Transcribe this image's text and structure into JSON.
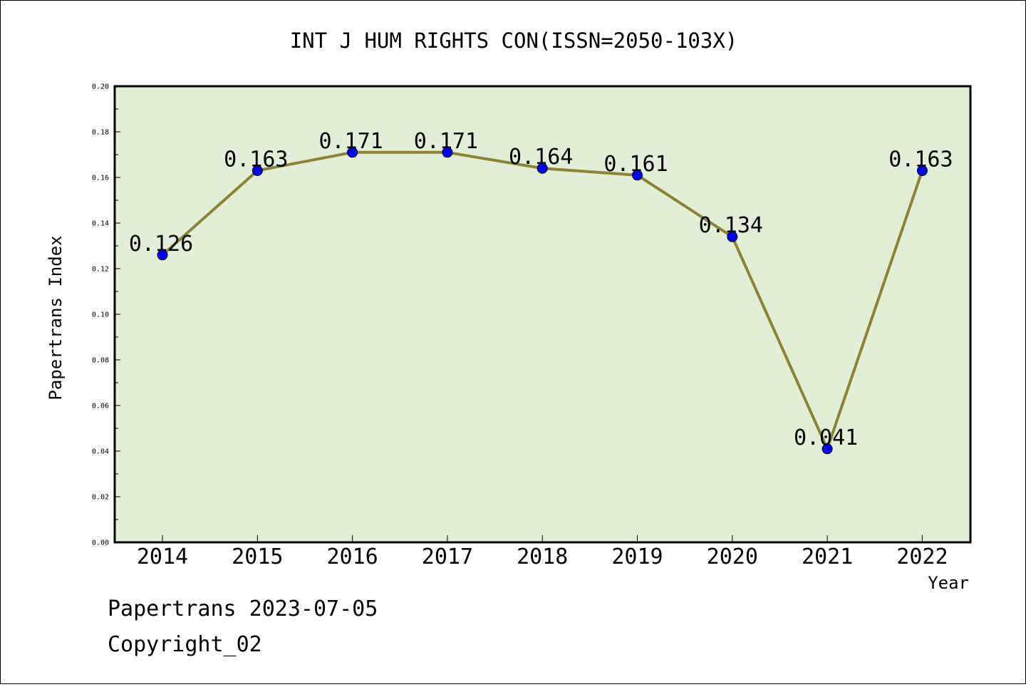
{
  "chart_data": {
    "type": "line",
    "title": "INT J HUM RIGHTS CON(ISSN=2050-103X)",
    "xlabel": "Year",
    "ylabel": "Papertrans Index",
    "categories": [
      "2014",
      "2015",
      "2016",
      "2017",
      "2018",
      "2019",
      "2020",
      "2021",
      "2022"
    ],
    "values": [
      0.126,
      0.163,
      0.171,
      0.171,
      0.164,
      0.161,
      0.134,
      0.041,
      0.163
    ],
    "data_labels": [
      "0.126",
      "0.163",
      "0.171",
      "0.171",
      "0.164",
      "0.161",
      "0.134",
      "0.041",
      "0.163"
    ],
    "ylim": [
      0,
      0.2
    ],
    "yticks": [
      "0.00",
      "0.02",
      "0.04",
      "0.06",
      "0.08",
      "0.10",
      "0.12",
      "0.14",
      "0.16",
      "0.18",
      "0.20"
    ],
    "grid": false,
    "colors": {
      "plot_background": "#e2efd6",
      "line": "#8c8434",
      "marker": "#0000ff"
    }
  },
  "footer": {
    "line1": "Papertrans 2023-07-05",
    "line2": "Copyright_02"
  }
}
